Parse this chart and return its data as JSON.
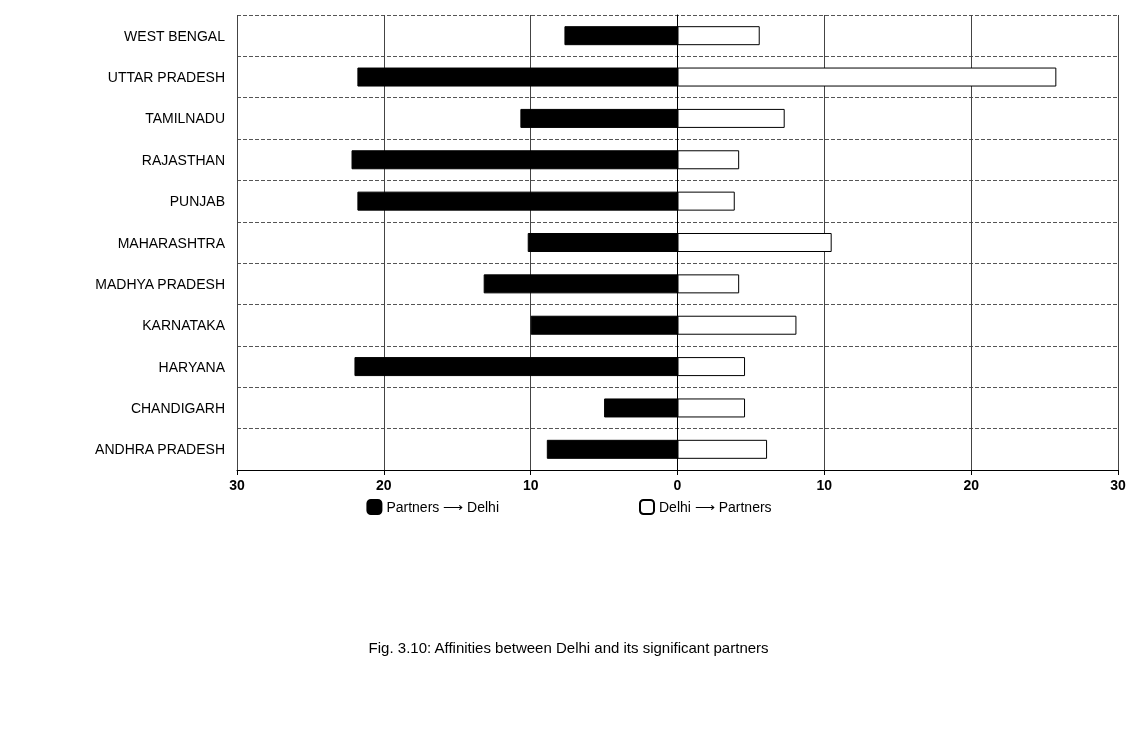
{
  "chart_data": {
    "type": "bar",
    "orientation": "horizontal",
    "categories": [
      "WEST BENGAL",
      "UTTAR PRADESH",
      "TAMILNADU",
      "RAJASTHAN",
      "PUNJAB",
      "MAHARASHTRA",
      "MADHYA PRADESH",
      "KARNATAKA",
      "HARYANA",
      "CHANDIGARH",
      "ANDHRA PRADESH"
    ],
    "series": [
      {
        "name": "Partners ⟶ Delhi",
        "color": "#000000",
        "values": [
          -7.7,
          -21.8,
          -10.7,
          -22.2,
          -21.8,
          -10.2,
          -13.2,
          -10.0,
          -22.0,
          -5.0,
          -8.9
        ]
      },
      {
        "name": "Delhi ⟶ Partners",
        "color": "#ffffff",
        "values": [
          5.6,
          25.8,
          7.3,
          4.2,
          3.9,
          10.5,
          4.2,
          8.1,
          4.6,
          4.6,
          6.1
        ]
      }
    ],
    "xlim": [
      -30,
      30
    ],
    "xticks": [
      {
        "value": -30,
        "label": "30"
      },
      {
        "value": -20,
        "label": "20"
      },
      {
        "value": -10,
        "label": "10"
      },
      0,
      10,
      20,
      30
    ],
    "grid": true,
    "legend": "bottom",
    "stacked": true,
    "annotations": [
      "Fig. 3.10: Affinities between Delhi and its significant partners"
    ]
  }
}
